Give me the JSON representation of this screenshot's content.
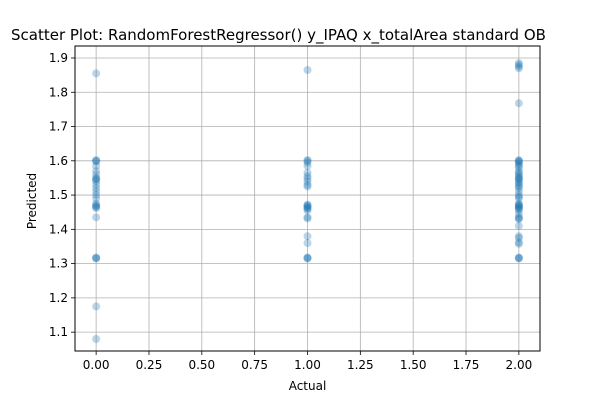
{
  "chart_data": {
    "type": "scatter",
    "title": "Scatter Plot: RandomForestRegressor() y_IPAQ x_totalArea standard OB",
    "xlabel": "Actual",
    "ylabel": "Predicted",
    "xlim": [
      -0.1,
      2.1
    ],
    "ylim": [
      1.045,
      1.935
    ],
    "xticks": [
      0.0,
      0.25,
      0.5,
      0.75,
      1.0,
      1.25,
      1.5,
      1.75,
      2.0
    ],
    "xtick_labels": [
      "0.00",
      "0.25",
      "0.50",
      "0.75",
      "1.00",
      "1.25",
      "1.50",
      "1.75",
      "2.00"
    ],
    "yticks": [
      1.1,
      1.2,
      1.3,
      1.4,
      1.5,
      1.6,
      1.7,
      1.8,
      1.9
    ],
    "ytick_labels": [
      "1.1",
      "1.2",
      "1.3",
      "1.4",
      "1.5",
      "1.6",
      "1.7",
      "1.8",
      "1.9"
    ],
    "grid": true,
    "marker_color": "#1f77b4",
    "marker_alpha": 0.3,
    "points": [
      {
        "x": 0,
        "y": 1.855
      },
      {
        "x": 0,
        "y": 1.602
      },
      {
        "x": 0,
        "y": 1.6
      },
      {
        "x": 0,
        "y": 1.598
      },
      {
        "x": 0,
        "y": 1.585
      },
      {
        "x": 0,
        "y": 1.57
      },
      {
        "x": 0,
        "y": 1.56
      },
      {
        "x": 0,
        "y": 1.55
      },
      {
        "x": 0,
        "y": 1.548
      },
      {
        "x": 0,
        "y": 1.545
      },
      {
        "x": 0,
        "y": 1.54
      },
      {
        "x": 0,
        "y": 1.53
      },
      {
        "x": 0,
        "y": 1.52
      },
      {
        "x": 0,
        "y": 1.51
      },
      {
        "x": 0,
        "y": 1.5
      },
      {
        "x": 0,
        "y": 1.49
      },
      {
        "x": 0,
        "y": 1.475
      },
      {
        "x": 0,
        "y": 1.47
      },
      {
        "x": 0,
        "y": 1.468
      },
      {
        "x": 0,
        "y": 1.465
      },
      {
        "x": 0,
        "y": 1.462
      },
      {
        "x": 0,
        "y": 1.435
      },
      {
        "x": 0,
        "y": 1.318
      },
      {
        "x": 0,
        "y": 1.316
      },
      {
        "x": 0,
        "y": 1.315
      },
      {
        "x": 0,
        "y": 1.175
      },
      {
        "x": 0,
        "y": 1.08
      },
      {
        "x": 1,
        "y": 1.865
      },
      {
        "x": 1,
        "y": 1.602
      },
      {
        "x": 1,
        "y": 1.6
      },
      {
        "x": 1,
        "y": 1.595
      },
      {
        "x": 1,
        "y": 1.585
      },
      {
        "x": 1,
        "y": 1.565
      },
      {
        "x": 1,
        "y": 1.555
      },
      {
        "x": 1,
        "y": 1.548
      },
      {
        "x": 1,
        "y": 1.54
      },
      {
        "x": 1,
        "y": 1.53
      },
      {
        "x": 1,
        "y": 1.525
      },
      {
        "x": 1,
        "y": 1.472
      },
      {
        "x": 1,
        "y": 1.47
      },
      {
        "x": 1,
        "y": 1.468
      },
      {
        "x": 1,
        "y": 1.465
      },
      {
        "x": 1,
        "y": 1.462
      },
      {
        "x": 1,
        "y": 1.46
      },
      {
        "x": 1,
        "y": 1.455
      },
      {
        "x": 1,
        "y": 1.435
      },
      {
        "x": 1,
        "y": 1.432
      },
      {
        "x": 1,
        "y": 1.38
      },
      {
        "x": 1,
        "y": 1.36
      },
      {
        "x": 1,
        "y": 1.318
      },
      {
        "x": 1,
        "y": 1.316
      },
      {
        "x": 1,
        "y": 1.315
      },
      {
        "x": 2,
        "y": 1.885
      },
      {
        "x": 2,
        "y": 1.88
      },
      {
        "x": 2,
        "y": 1.875
      },
      {
        "x": 2,
        "y": 1.87
      },
      {
        "x": 2,
        "y": 1.768
      },
      {
        "x": 2,
        "y": 1.602
      },
      {
        "x": 2,
        "y": 1.6
      },
      {
        "x": 2,
        "y": 1.598
      },
      {
        "x": 2,
        "y": 1.595
      },
      {
        "x": 2,
        "y": 1.59
      },
      {
        "x": 2,
        "y": 1.585
      },
      {
        "x": 2,
        "y": 1.58
      },
      {
        "x": 2,
        "y": 1.57
      },
      {
        "x": 2,
        "y": 1.565
      },
      {
        "x": 2,
        "y": 1.56
      },
      {
        "x": 2,
        "y": 1.555
      },
      {
        "x": 2,
        "y": 1.55
      },
      {
        "x": 2,
        "y": 1.548
      },
      {
        "x": 2,
        "y": 1.545
      },
      {
        "x": 2,
        "y": 1.54
      },
      {
        "x": 2,
        "y": 1.535
      },
      {
        "x": 2,
        "y": 1.53
      },
      {
        "x": 2,
        "y": 1.525
      },
      {
        "x": 2,
        "y": 1.52
      },
      {
        "x": 2,
        "y": 1.51
      },
      {
        "x": 2,
        "y": 1.5
      },
      {
        "x": 2,
        "y": 1.495
      },
      {
        "x": 2,
        "y": 1.49
      },
      {
        "x": 2,
        "y": 1.475
      },
      {
        "x": 2,
        "y": 1.472
      },
      {
        "x": 2,
        "y": 1.47
      },
      {
        "x": 2,
        "y": 1.468
      },
      {
        "x": 2,
        "y": 1.465
      },
      {
        "x": 2,
        "y": 1.462
      },
      {
        "x": 2,
        "y": 1.46
      },
      {
        "x": 2,
        "y": 1.455
      },
      {
        "x": 2,
        "y": 1.445
      },
      {
        "x": 2,
        "y": 1.435
      },
      {
        "x": 2,
        "y": 1.432
      },
      {
        "x": 2,
        "y": 1.43
      },
      {
        "x": 2,
        "y": 1.41
      },
      {
        "x": 2,
        "y": 1.38
      },
      {
        "x": 2,
        "y": 1.375
      },
      {
        "x": 2,
        "y": 1.362
      },
      {
        "x": 2,
        "y": 1.358
      },
      {
        "x": 2,
        "y": 1.318
      },
      {
        "x": 2,
        "y": 1.316
      },
      {
        "x": 2,
        "y": 1.315
      }
    ]
  }
}
